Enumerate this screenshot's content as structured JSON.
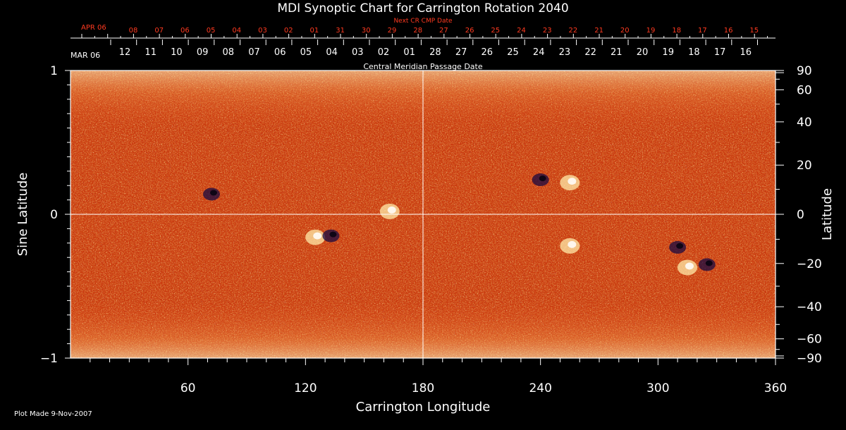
{
  "chart_data": {
    "type": "heatmap",
    "title": "MDI Synoptic Chart for Carrington Rotation 2040",
    "xlabel": "Carrington Longitude",
    "ylabel_left": "Sine Latitude",
    "ylabel_right": "Latitude",
    "xlim": [
      0,
      360
    ],
    "ylim": [
      -1,
      1
    ],
    "x_ticks": [
      60,
      120,
      180,
      240,
      300,
      360
    ],
    "y_ticks_left": [
      {
        "value": 1,
        "label": "1"
      },
      {
        "value": 0,
        "label": "0"
      },
      {
        "value": -1,
        "label": "−1"
      }
    ],
    "y_ticks_right": [
      {
        "value": 90,
        "label": "90"
      },
      {
        "value": 60,
        "label": "60"
      },
      {
        "value": 40,
        "label": "40"
      },
      {
        "value": 20,
        "label": "20"
      },
      {
        "value": 0,
        "label": "0"
      },
      {
        "value": -20,
        "label": "−20"
      },
      {
        "value": -40,
        "label": "−40"
      },
      {
        "value": -60,
        "label": "−60"
      },
      {
        "value": -90,
        "label": "−90"
      }
    ],
    "next_cr_axis": {
      "label": "Next CR CMP Date",
      "start_label": "APR 06",
      "dates": [
        "08",
        "07",
        "06",
        "05",
        "04",
        "03",
        "02",
        "01",
        "31",
        "30",
        "29",
        "28",
        "27",
        "26",
        "25",
        "24",
        "23",
        "22",
        "21",
        "20",
        "19",
        "18",
        "17",
        "16",
        "15"
      ]
    },
    "cmp_axis": {
      "label": "Central Meridian Passage Date",
      "start_label": "MAR 06",
      "dates": [
        "12",
        "11",
        "10",
        "09",
        "08",
        "07",
        "06",
        "05",
        "04",
        "03",
        "02",
        "01",
        "28",
        "27",
        "26",
        "25",
        "24",
        "23",
        "22",
        "21",
        "20",
        "19",
        "18",
        "17",
        "16"
      ]
    },
    "features": [
      {
        "lon": 125,
        "sinlat": -0.16,
        "polarity": "positive"
      },
      {
        "lon": 133,
        "sinlat": -0.15,
        "polarity": "negative"
      },
      {
        "lon": 72,
        "sinlat": 0.14,
        "polarity": "negative"
      },
      {
        "lon": 255,
        "sinlat": 0.22,
        "polarity": "positive"
      },
      {
        "lon": 240,
        "sinlat": 0.24,
        "polarity": "negative"
      },
      {
        "lon": 255,
        "sinlat": -0.22,
        "polarity": "positive"
      },
      {
        "lon": 315,
        "sinlat": -0.37,
        "polarity": "positive"
      },
      {
        "lon": 325,
        "sinlat": -0.35,
        "polarity": "negative"
      },
      {
        "lon": 310,
        "sinlat": -0.23,
        "polarity": "negative"
      },
      {
        "lon": 163,
        "sinlat": 0.02,
        "polarity": "positive"
      }
    ],
    "colors": {
      "background": "#000000",
      "field_low": "#7a1800",
      "field_mid": "#e8501a",
      "field_high": "#ffe9a8",
      "negative": "#1a0a40",
      "date_axis": "#ff3a20"
    }
  },
  "footer": {
    "plot_made": "Plot Made  9-Nov-2007"
  }
}
